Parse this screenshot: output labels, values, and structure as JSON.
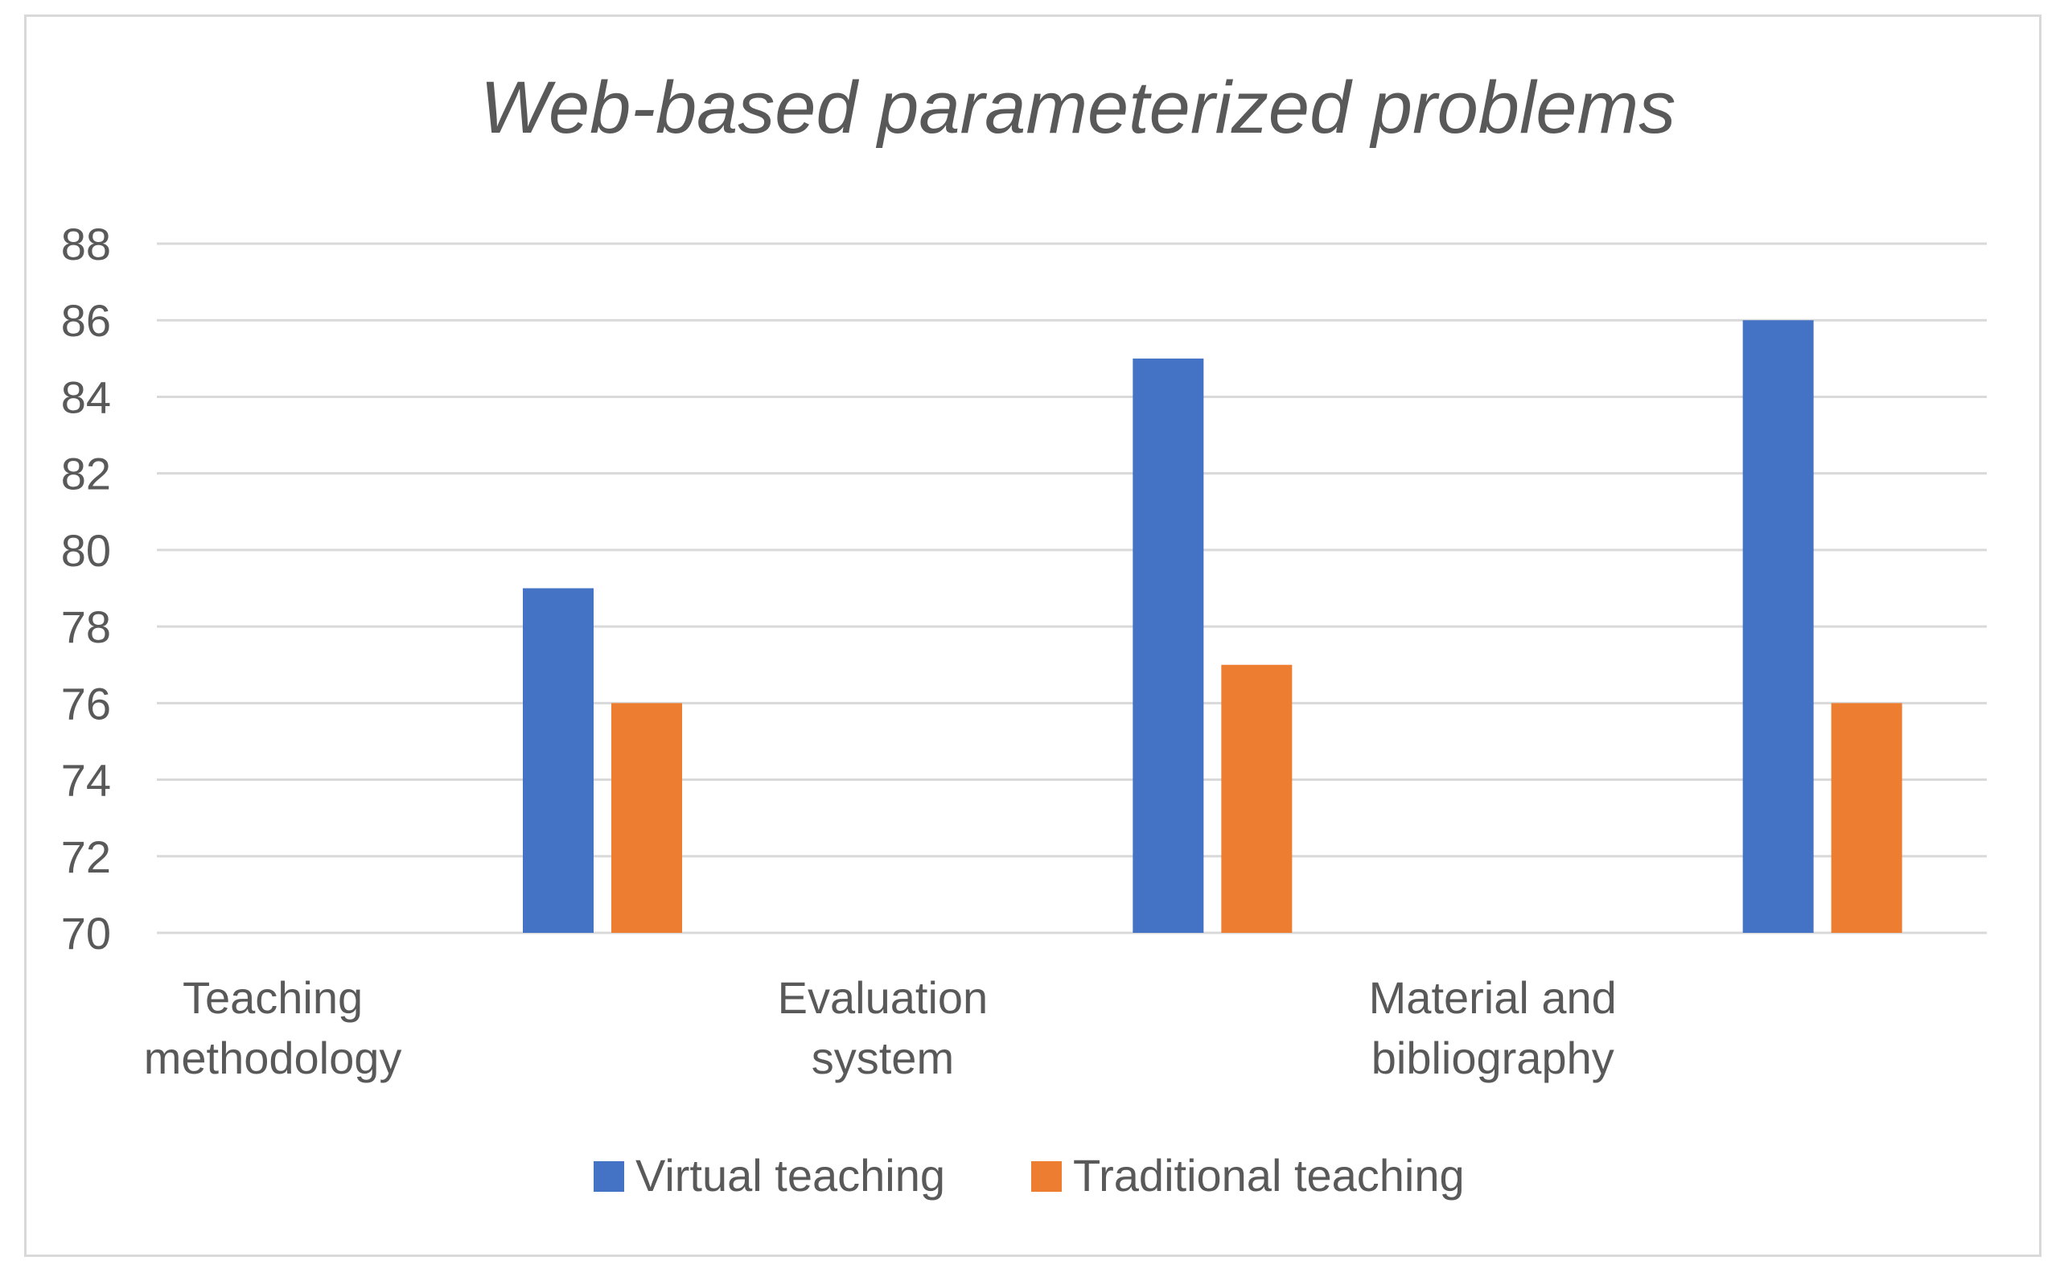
{
  "chart_data": {
    "type": "bar",
    "title": "Web-based parameterized problems",
    "xlabel": "",
    "ylabel": "",
    "categories": [
      [
        "Teaching",
        "methodology"
      ],
      [
        "Evaluation",
        "system"
      ],
      [
        "Material and",
        "bibliography"
      ]
    ],
    "series": [
      {
        "name": "Virtual teaching",
        "color": "#4472c4",
        "values": [
          79,
          85,
          86
        ]
      },
      {
        "name": "Traditional teaching",
        "color": "#ed7d31",
        "values": [
          76,
          77,
          76
        ]
      }
    ],
    "ylim": [
      70,
      88
    ],
    "yticks": [
      "70",
      "72",
      "74",
      "76",
      "78",
      "80",
      "82",
      "84",
      "86",
      "88"
    ],
    "grid": true,
    "gridColor": "#d9d9d9",
    "legend": "bottom"
  }
}
